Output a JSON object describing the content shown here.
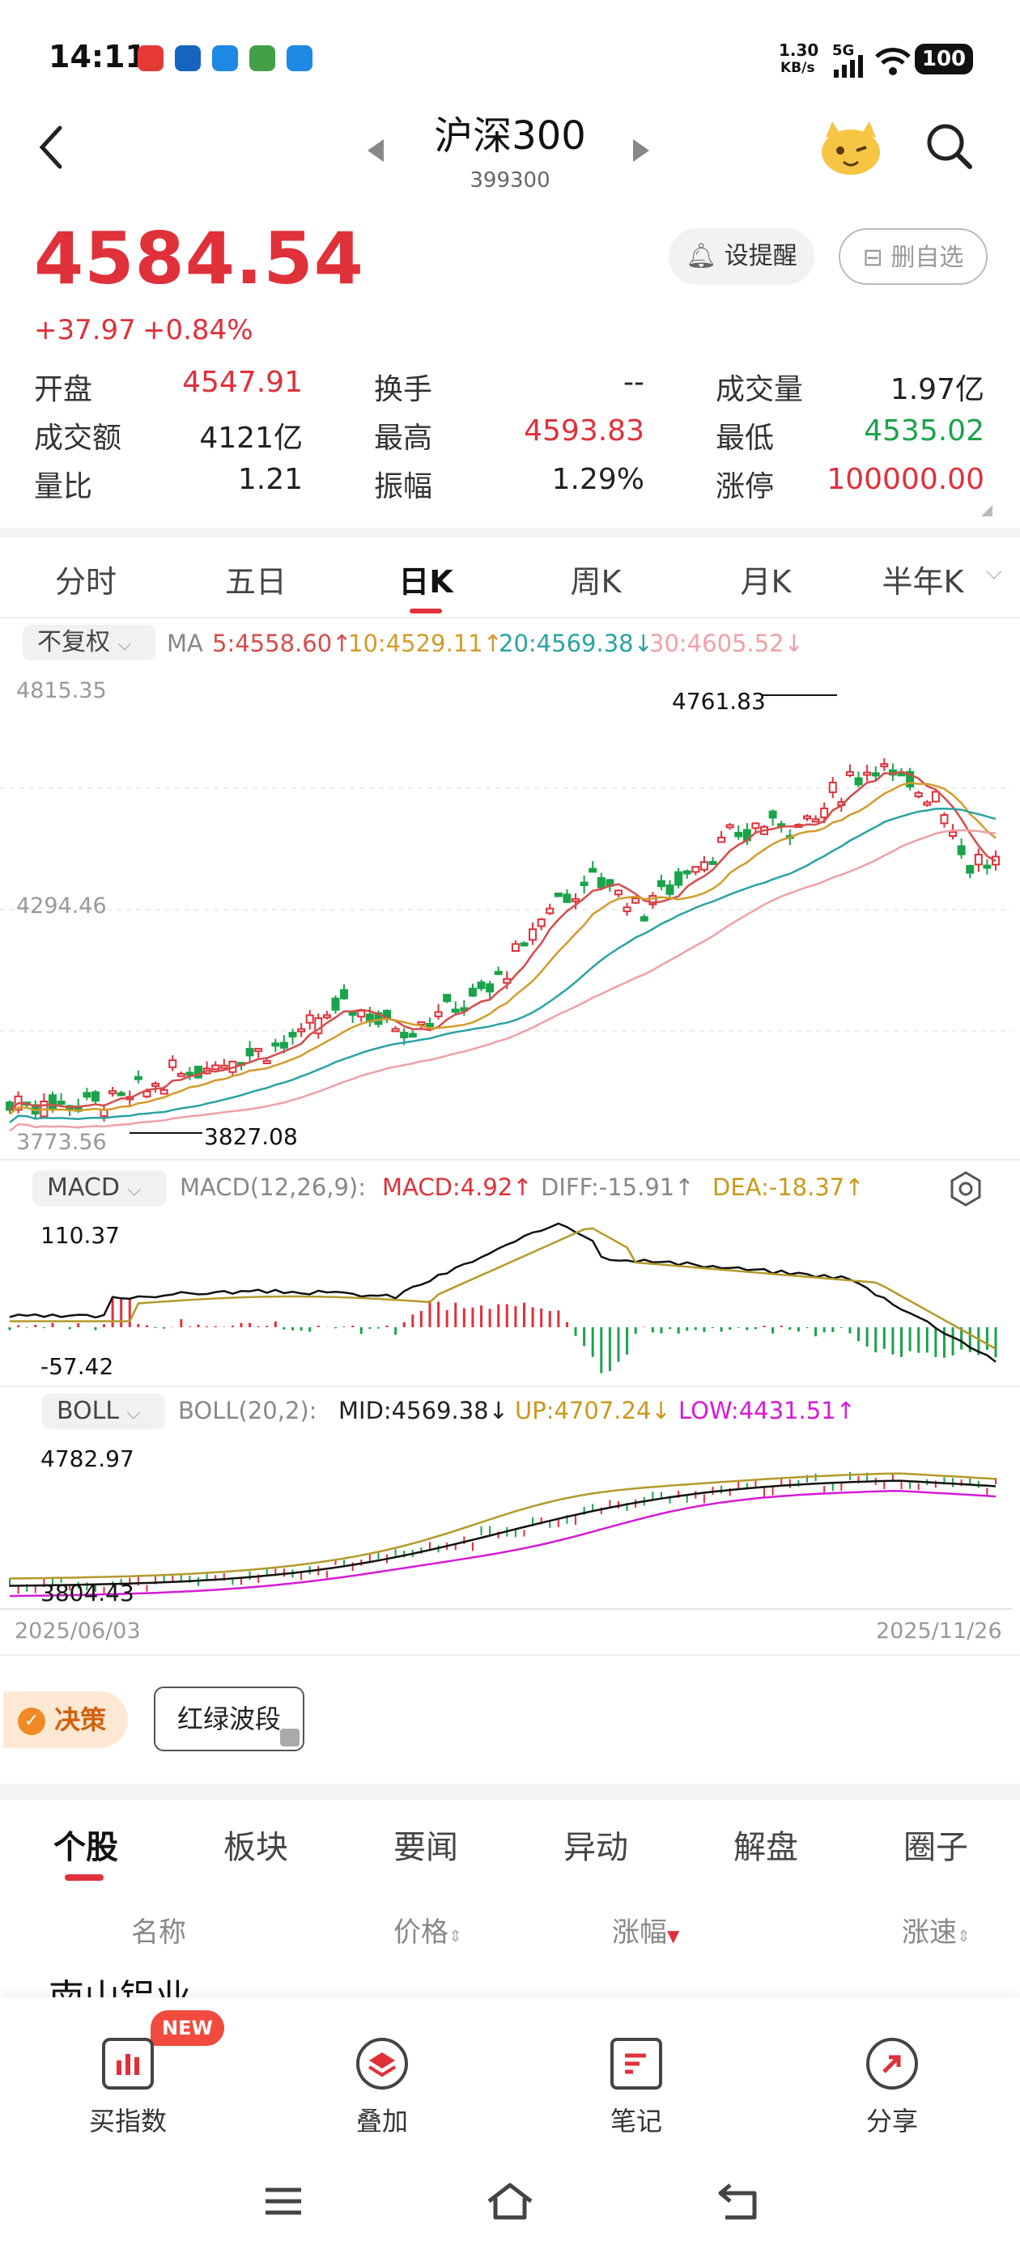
{
  "status_bar": {
    "time": "14:11",
    "net_speed": "1.30",
    "net_unit": "KB/s",
    "net_type": "5G",
    "battery": "100"
  },
  "header": {
    "title": "沪深300",
    "code": "399300"
  },
  "quote": {
    "price": "4584.54",
    "change": "+37.97",
    "change_pct": "+0.84%",
    "alert_label": "设提醒",
    "delete_label": "删自选"
  },
  "stats": [
    {
      "label": "开盘",
      "value": "4547.91",
      "color": "#e0303a"
    },
    {
      "label": "换手",
      "value": "--",
      "color": "#222222"
    },
    {
      "label": "成交量",
      "value": "1.97亿",
      "color": "#222222"
    },
    {
      "label": "成交额",
      "value": "4121亿",
      "color": "#222222"
    },
    {
      "label": "最高",
      "value": "4593.83",
      "color": "#e0303a"
    },
    {
      "label": "最低",
      "value": "4535.02",
      "color": "#1aa34a"
    },
    {
      "label": "量比",
      "value": "1.21",
      "color": "#222222"
    },
    {
      "label": "振幅",
      "value": "1.29%",
      "color": "#222222"
    },
    {
      "label": "涨停",
      "value": "100000.00",
      "color": "#e0303a"
    }
  ],
  "kline_tabs": [
    "分时",
    "五日",
    "日K",
    "周K",
    "月K",
    "半年K"
  ],
  "kline_active": "日K",
  "ma_bar": {
    "adjust_label": "不复权",
    "ma_label": "MA",
    "ma5": "5:4558.60↑",
    "ma10": "10:4529.11↑",
    "ma20": "20:4569.38↓",
    "ma30": "30:4605.52↓"
  },
  "main_chart": {
    "y_top": "4815.35",
    "y_mid": "4294.46",
    "y_bottom": "3773.56",
    "high_label": "4761.83",
    "low_label": "3827.08"
  },
  "macd": {
    "name": "MACD",
    "params": "MACD(12,26,9):",
    "macd": "MACD:4.92↑",
    "diff": "DIFF:-15.91↑",
    "dea": "DEA:-18.37↑",
    "y_top": "110.37",
    "y_bottom": "-57.42"
  },
  "boll": {
    "name": "BOLL",
    "params": "BOLL(20,2):",
    "mid": "MID:4569.38↓",
    "up": "UP:4707.24↓",
    "low": "LOW:4431.51↑",
    "y_top": "4782.97",
    "y_bottom": "3804.43"
  },
  "dates": {
    "start": "2025/06/03",
    "end": "2025/11/26"
  },
  "tools": {
    "decision": "决策",
    "wave": "红绿波段"
  },
  "news_tabs": [
    "个股",
    "板块",
    "要闻",
    "异动",
    "解盘",
    "圈子"
  ],
  "news_active": "个股",
  "list_header": {
    "name": "名称",
    "price": "价格",
    "change": "涨幅",
    "speed": "涨速"
  },
  "first_row_partial": "南山铝业",
  "bottom_nav": [
    {
      "label": "买指数",
      "icon": "bar-chart-icon",
      "badge": "NEW"
    },
    {
      "label": "叠加",
      "icon": "layers-icon"
    },
    {
      "label": "笔记",
      "icon": "notes-icon"
    },
    {
      "label": "分享",
      "icon": "share-icon"
    }
  ],
  "colors": {
    "up": "#e0303a",
    "down": "#1aa34a",
    "accent": "#e0303a"
  }
}
